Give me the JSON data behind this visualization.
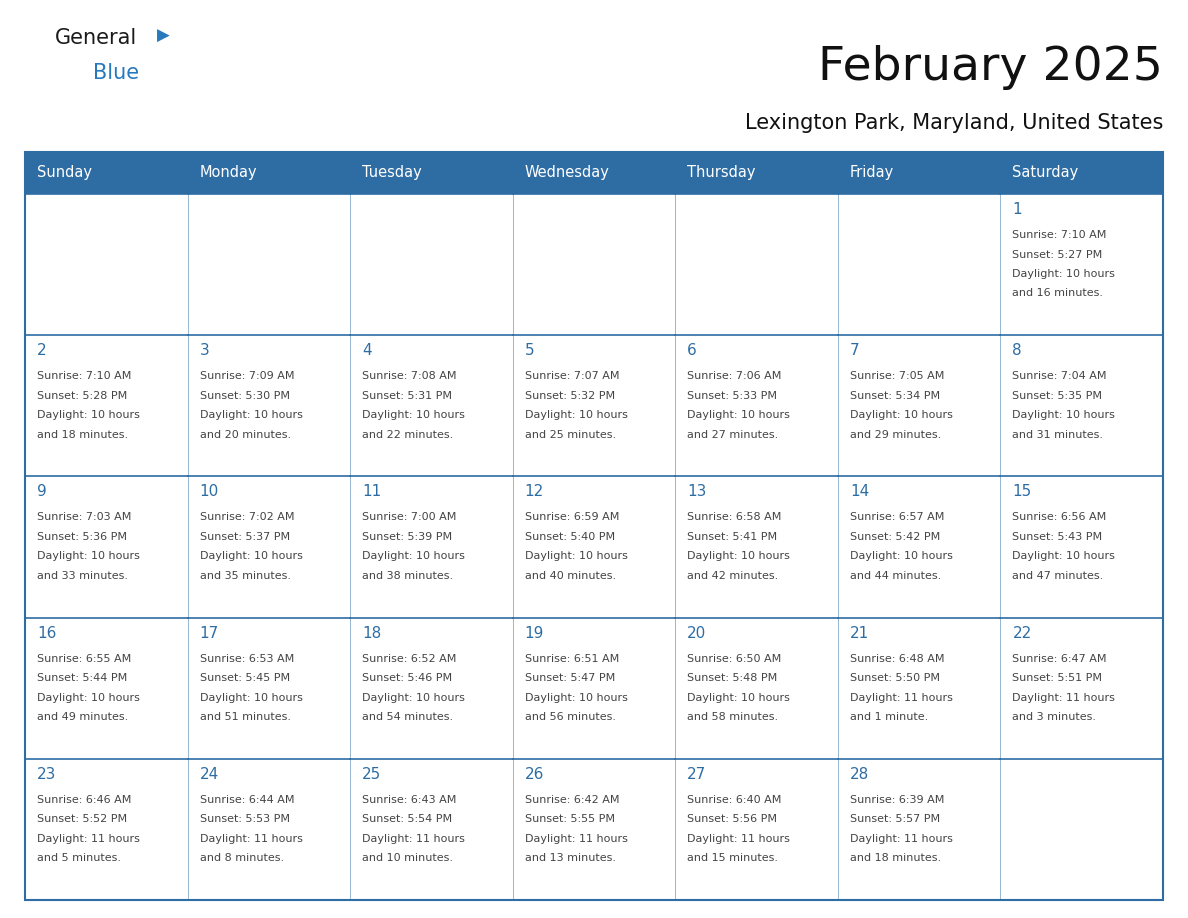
{
  "title": "February 2025",
  "subtitle": "Lexington Park, Maryland, United States",
  "days_of_week": [
    "Sunday",
    "Monday",
    "Tuesday",
    "Wednesday",
    "Thursday",
    "Friday",
    "Saturday"
  ],
  "header_bg": "#2E6DA4",
  "header_text_color": "#FFFFFF",
  "cell_bg": "#FFFFFF",
  "border_color": "#2E6DA4",
  "title_color": "#111111",
  "day_num_color": "#2E6DA4",
  "text_color": "#444444",
  "logo_black": "#1a1a1a",
  "logo_blue": "#2878BE",
  "calendar": [
    [
      null,
      null,
      null,
      null,
      null,
      null,
      {
        "day": 1,
        "sunrise": "7:10 AM",
        "sunset": "5:27 PM",
        "daylight": "10 hours\nand 16 minutes."
      }
    ],
    [
      {
        "day": 2,
        "sunrise": "7:10 AM",
        "sunset": "5:28 PM",
        "daylight": "10 hours\nand 18 minutes."
      },
      {
        "day": 3,
        "sunrise": "7:09 AM",
        "sunset": "5:30 PM",
        "daylight": "10 hours\nand 20 minutes."
      },
      {
        "day": 4,
        "sunrise": "7:08 AM",
        "sunset": "5:31 PM",
        "daylight": "10 hours\nand 22 minutes."
      },
      {
        "day": 5,
        "sunrise": "7:07 AM",
        "sunset": "5:32 PM",
        "daylight": "10 hours\nand 25 minutes."
      },
      {
        "day": 6,
        "sunrise": "7:06 AM",
        "sunset": "5:33 PM",
        "daylight": "10 hours\nand 27 minutes."
      },
      {
        "day": 7,
        "sunrise": "7:05 AM",
        "sunset": "5:34 PM",
        "daylight": "10 hours\nand 29 minutes."
      },
      {
        "day": 8,
        "sunrise": "7:04 AM",
        "sunset": "5:35 PM",
        "daylight": "10 hours\nand 31 minutes."
      }
    ],
    [
      {
        "day": 9,
        "sunrise": "7:03 AM",
        "sunset": "5:36 PM",
        "daylight": "10 hours\nand 33 minutes."
      },
      {
        "day": 10,
        "sunrise": "7:02 AM",
        "sunset": "5:37 PM",
        "daylight": "10 hours\nand 35 minutes."
      },
      {
        "day": 11,
        "sunrise": "7:00 AM",
        "sunset": "5:39 PM",
        "daylight": "10 hours\nand 38 minutes."
      },
      {
        "day": 12,
        "sunrise": "6:59 AM",
        "sunset": "5:40 PM",
        "daylight": "10 hours\nand 40 minutes."
      },
      {
        "day": 13,
        "sunrise": "6:58 AM",
        "sunset": "5:41 PM",
        "daylight": "10 hours\nand 42 minutes."
      },
      {
        "day": 14,
        "sunrise": "6:57 AM",
        "sunset": "5:42 PM",
        "daylight": "10 hours\nand 44 minutes."
      },
      {
        "day": 15,
        "sunrise": "6:56 AM",
        "sunset": "5:43 PM",
        "daylight": "10 hours\nand 47 minutes."
      }
    ],
    [
      {
        "day": 16,
        "sunrise": "6:55 AM",
        "sunset": "5:44 PM",
        "daylight": "10 hours\nand 49 minutes."
      },
      {
        "day": 17,
        "sunrise": "6:53 AM",
        "sunset": "5:45 PM",
        "daylight": "10 hours\nand 51 minutes."
      },
      {
        "day": 18,
        "sunrise": "6:52 AM",
        "sunset": "5:46 PM",
        "daylight": "10 hours\nand 54 minutes."
      },
      {
        "day": 19,
        "sunrise": "6:51 AM",
        "sunset": "5:47 PM",
        "daylight": "10 hours\nand 56 minutes."
      },
      {
        "day": 20,
        "sunrise": "6:50 AM",
        "sunset": "5:48 PM",
        "daylight": "10 hours\nand 58 minutes."
      },
      {
        "day": 21,
        "sunrise": "6:48 AM",
        "sunset": "5:50 PM",
        "daylight": "11 hours\nand 1 minute."
      },
      {
        "day": 22,
        "sunrise": "6:47 AM",
        "sunset": "5:51 PM",
        "daylight": "11 hours\nand 3 minutes."
      }
    ],
    [
      {
        "day": 23,
        "sunrise": "6:46 AM",
        "sunset": "5:52 PM",
        "daylight": "11 hours\nand 5 minutes."
      },
      {
        "day": 24,
        "sunrise": "6:44 AM",
        "sunset": "5:53 PM",
        "daylight": "11 hours\nand 8 minutes."
      },
      {
        "day": 25,
        "sunrise": "6:43 AM",
        "sunset": "5:54 PM",
        "daylight": "11 hours\nand 10 minutes."
      },
      {
        "day": 26,
        "sunrise": "6:42 AM",
        "sunset": "5:55 PM",
        "daylight": "11 hours\nand 13 minutes."
      },
      {
        "day": 27,
        "sunrise": "6:40 AM",
        "sunset": "5:56 PM",
        "daylight": "11 hours\nand 15 minutes."
      },
      {
        "day": 28,
        "sunrise": "6:39 AM",
        "sunset": "5:57 PM",
        "daylight": "11 hours\nand 18 minutes."
      },
      null
    ]
  ]
}
